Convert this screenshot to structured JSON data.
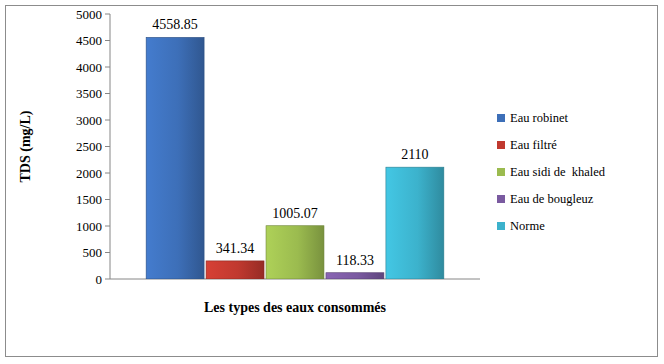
{
  "chart_data": {
    "type": "bar",
    "x_label": "Les types des eaux consommés",
    "y_label": "TDS (mg/L)",
    "categories": [
      null
    ],
    "series": [
      {
        "name": "Eau robinet",
        "color": "#3d6fb8",
        "values": [
          4558.85
        ]
      },
      {
        "name": "Eau filtré",
        "color": "#c0392f",
        "values": [
          341.34
        ]
      },
      {
        "name": "Eau sidi de  khaled",
        "color": "#9bbb4f",
        "values": [
          1005.07
        ]
      },
      {
        "name": "Eau de bougleuz",
        "color": "#7a5aa0",
        "values": [
          118.33
        ]
      },
      {
        "name": "Norme",
        "color": "#3cb2cc",
        "values": [
          2110
        ]
      }
    ],
    "ylim": [
      0,
      5000
    ],
    "yticks": [
      0,
      500,
      1000,
      1500,
      2000,
      2500,
      3000,
      3500,
      4000,
      4500,
      5000
    ],
    "grid": false,
    "legend": "right",
    "data_labels": true
  }
}
